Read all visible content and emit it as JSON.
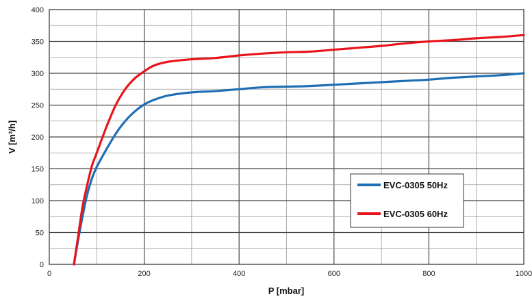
{
  "chart_data": {
    "type": "line",
    "title": "",
    "xlabel": "P [mbar]",
    "ylabel": "V [m³/h]",
    "xlim": [
      0,
      1000
    ],
    "ylim": [
      0,
      400
    ],
    "x_ticks": [
      "0",
      "200",
      "400",
      "600",
      "800",
      "1000"
    ],
    "y_ticks": [
      "0",
      "50",
      "100",
      "150",
      "200",
      "250",
      "300",
      "350",
      "400"
    ],
    "grid": true,
    "legend_position": "bottom-right",
    "series": [
      {
        "name": "EVC-0305 50Hz",
        "color": "#1f6fb5",
        "x": [
          52,
          60,
          70,
          80,
          90,
          100,
          120,
          140,
          160,
          180,
          200,
          220,
          250,
          300,
          350,
          400,
          450,
          500,
          550,
          600,
          650,
          700,
          750,
          800,
          850,
          900,
          950,
          1000
        ],
        "y": [
          0,
          35,
          75,
          110,
          135,
          153,
          180,
          205,
          225,
          240,
          251,
          258,
          265,
          270,
          272,
          275,
          278,
          279,
          280,
          282,
          284,
          286,
          288,
          290,
          293,
          295,
          297,
          300
        ]
      },
      {
        "name": "EVC-0305 60Hz",
        "color": "#e8141b",
        "x": [
          52,
          60,
          70,
          80,
          90,
          100,
          120,
          140,
          160,
          180,
          200,
          220,
          250,
          300,
          350,
          400,
          450,
          500,
          550,
          600,
          650,
          700,
          750,
          800,
          850,
          900,
          950,
          1000
        ],
        "y": [
          0,
          40,
          90,
          125,
          155,
          175,
          215,
          250,
          275,
          292,
          303,
          312,
          318,
          322,
          324,
          328,
          331,
          333,
          334,
          337,
          340,
          343,
          347,
          350,
          352,
          355,
          357,
          360
        ]
      }
    ]
  }
}
